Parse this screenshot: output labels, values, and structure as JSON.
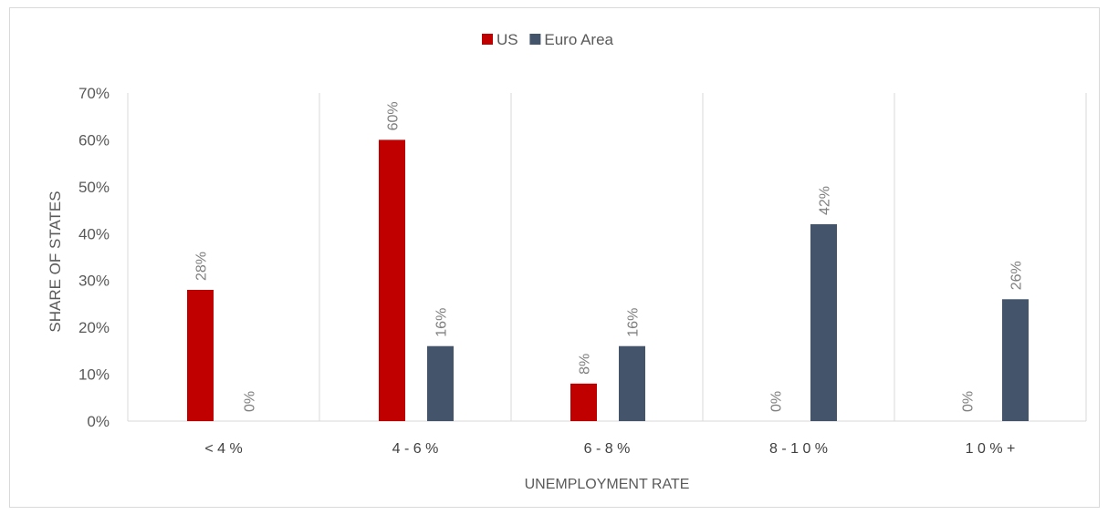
{
  "chart_data": {
    "type": "bar",
    "title": "",
    "xlabel": "UNEMPLOYMENT RATE",
    "ylabel": "SHARE OF STATES",
    "categories": [
      "< 4 %",
      "4 - 6 %",
      "6 - 8 %",
      "8 - 1 0 %",
      "1 0 % +"
    ],
    "ylim": [
      0,
      70
    ],
    "yticks": [
      0,
      10,
      20,
      30,
      40,
      50,
      60,
      70
    ],
    "ytick_labels": [
      "0%",
      "10%",
      "20%",
      "30%",
      "40%",
      "50%",
      "60%",
      "70%"
    ],
    "y_gridlines": false,
    "category_separators": true,
    "legend_position": "top-center",
    "series": [
      {
        "name": "US",
        "color": "#c00000",
        "values": [
          28,
          60,
          8,
          0,
          0
        ],
        "labels": [
          "28%",
          "60%",
          "8%",
          "0%",
          "0%"
        ]
      },
      {
        "name": "Euro Area",
        "color": "#44546a",
        "values": [
          0,
          16,
          16,
          42,
          26
        ],
        "labels": [
          "0%",
          "16%",
          "16%",
          "42%",
          "26%"
        ]
      }
    ]
  }
}
